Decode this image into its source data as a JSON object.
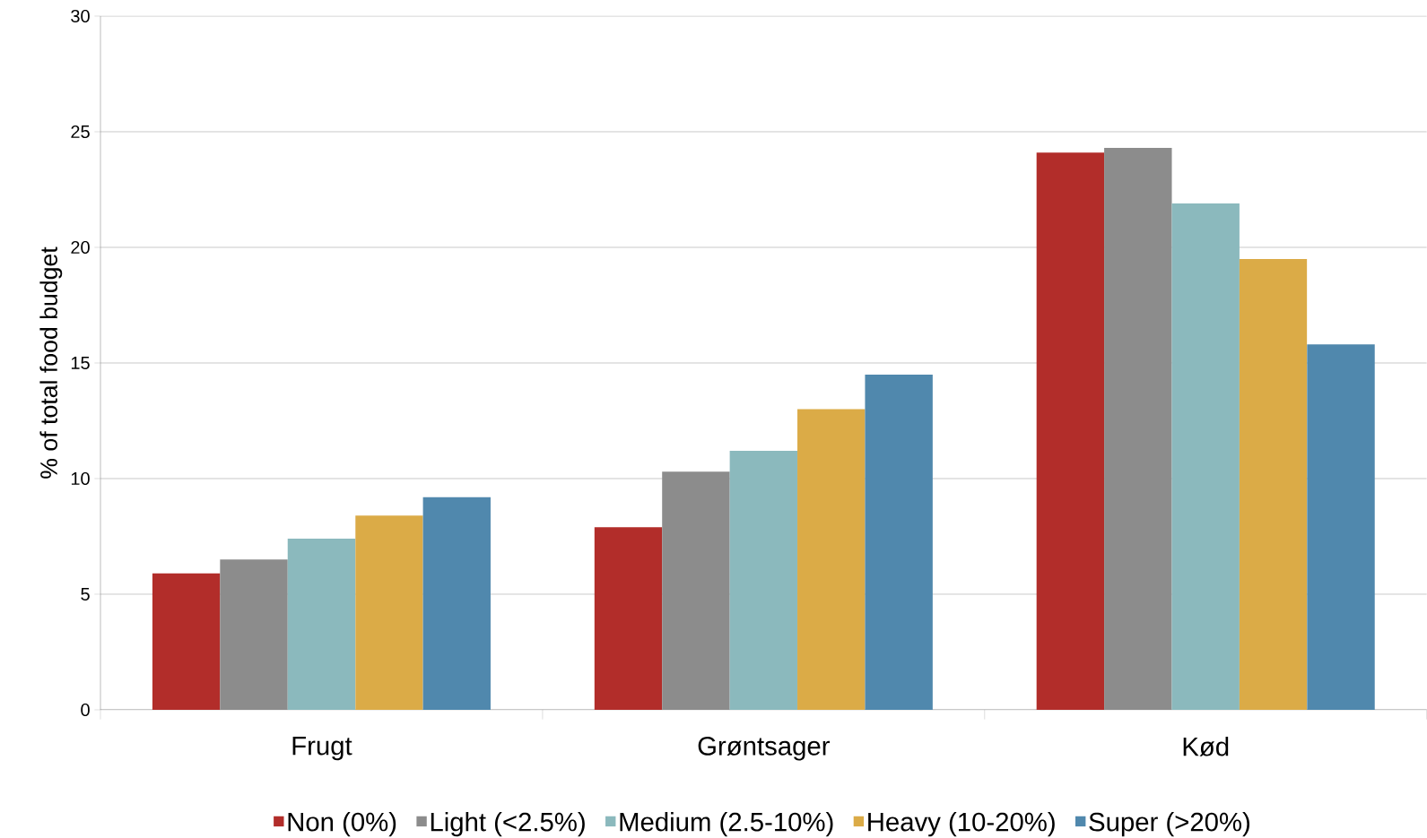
{
  "chart_data": {
    "type": "bar",
    "ylabel": "% of total food budget",
    "categories": [
      "Frugt",
      "Grøntsager",
      "Kød"
    ],
    "series": [
      {
        "name": "Non (0%)",
        "color": "#b22d2a",
        "values": [
          5.9,
          7.9,
          24.1
        ]
      },
      {
        "name": "Light (<2.5%)",
        "color": "#8c8c8c",
        "values": [
          6.5,
          10.3,
          24.3
        ]
      },
      {
        "name": "Medium (2.5-10%)",
        "color": "#8bb9bd",
        "values": [
          7.4,
          11.2,
          21.9
        ]
      },
      {
        "name": "Heavy (10-20%)",
        "color": "#dbab47",
        "values": [
          8.4,
          13.0,
          19.5
        ]
      },
      {
        "name": "Super (>20%)",
        "color": "#5088ad",
        "values": [
          9.2,
          14.5,
          15.8
        ]
      }
    ],
    "ylim": [
      0,
      30
    ],
    "yticks": [
      0,
      5,
      10,
      15,
      20,
      25,
      30
    ],
    "grid": "y",
    "legend": "bottom"
  }
}
